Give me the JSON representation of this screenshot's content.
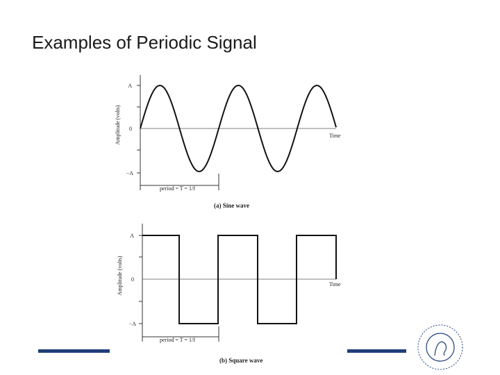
{
  "header": {
    "title": "Examples of Periodic Signal"
  },
  "figures": [
    {
      "y_axis_label": "Amplitude (volts)",
      "ticks": [
        "A",
        "0",
        "−A"
      ],
      "x_axis_label": "Time",
      "period_label": "period = T = 1/f",
      "caption": "(a) Sine wave"
    },
    {
      "y_axis_label": "Amplitude (volts)",
      "ticks": [
        "A",
        "0",
        "−A"
      ],
      "x_axis_label": "Time",
      "period_label": "period = T = 1/f",
      "caption": "(b) Square wave"
    }
  ]
}
